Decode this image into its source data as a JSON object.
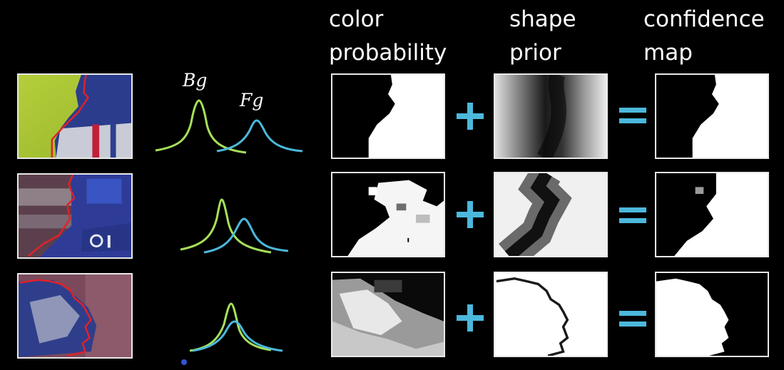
{
  "headers": {
    "color_probability": [
      "color",
      "probability"
    ],
    "shape_prior": [
      "shape",
      "prior"
    ],
    "confidence_map": [
      "confidence",
      "map"
    ]
  },
  "labels": {
    "bg": "Bg",
    "fg": "Fg"
  },
  "colors": {
    "background": "#000000",
    "border": "#e8e8e8",
    "bg_curve": "#a6e05a",
    "fg_curve": "#4cb8dc",
    "operator": "#4cb8dc",
    "outline": "#e3202a"
  },
  "operators": [
    "plus",
    "equals"
  ]
}
